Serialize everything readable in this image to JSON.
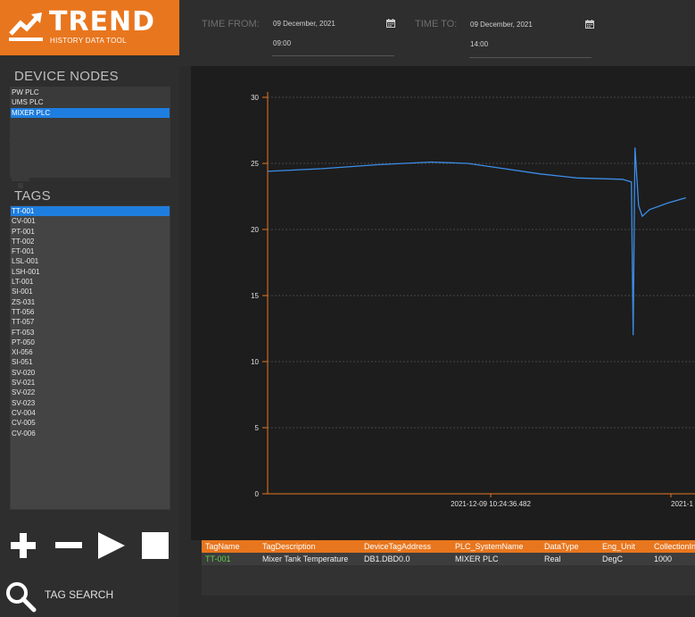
{
  "logo": {
    "title": "TREND",
    "subtitle": "HISTORY DATA TOOL"
  },
  "device_nodes": {
    "label": "DEVICE NODES",
    "items": [
      "PW PLC",
      "UMS PLC",
      "MIXER PLC"
    ],
    "selected": "MIXER PLC"
  },
  "tags": {
    "label": "TAGS",
    "items": [
      "TT-001",
      "CV-001",
      "PT-001",
      "TT-002",
      "FT-001",
      "LSL-001",
      "LSH-001",
      "LT-001",
      "SI-001",
      "ZS-031",
      "TT-056",
      "TT-057",
      "FT-053",
      "PT-050",
      "XI-056",
      "SI-051",
      "SV-020",
      "SV-021",
      "SV-022",
      "SV-023",
      "CV-004",
      "CV-005",
      "CV-006"
    ],
    "selected": "TT-001"
  },
  "search": {
    "label": "TAG SEARCH"
  },
  "time": {
    "from_label": "TIME FROM:",
    "from_date": "09 December, 2021",
    "from_time": "09:00",
    "to_label": "TIME TO:",
    "to_date": "09 December, 2021",
    "to_time": "14:00"
  },
  "chart_data": {
    "type": "line",
    "ylim": [
      0,
      30
    ],
    "y_ticks": [
      0,
      5,
      10,
      15,
      20,
      25,
      30
    ],
    "x_tick_labels": [
      "2021-12-09 10:24:36.482",
      "2021-1"
    ],
    "grid": true,
    "series": [
      {
        "color": "#3c8ee8",
        "x": [
          "2021-12-09 09:00",
          "2021-12-09 09:30",
          "2021-12-09 10:00",
          "2021-12-09 10:30",
          "2021-12-09 10:50",
          "2021-12-09 11:10",
          "2021-12-09 11:30",
          "2021-12-09 11:50",
          "2021-12-09 12:15",
          "2021-12-09 12:20",
          "2021-12-09 12:21",
          "2021-12-09 12:22",
          "2021-12-09 12:24",
          "2021-12-09 12:26",
          "2021-12-09 12:30",
          "2021-12-09 12:40",
          "2021-12-09 12:50"
        ],
        "y": [
          24.4,
          24.6,
          24.9,
          25.1,
          25.0,
          24.6,
          24.2,
          23.9,
          23.8,
          23.6,
          12.0,
          26.2,
          21.8,
          21.0,
          21.5,
          22.0,
          22.4
        ]
      }
    ]
  },
  "grid": {
    "headers": [
      "TagName",
      "TagDescription",
      "DeviceTagAddress",
      "PLC_SystemName",
      "DataType",
      "Eng_Unit",
      "CollectionIn"
    ],
    "rows": [
      [
        "TT-001",
        "Mixer Tank Temperature",
        "DB1.DBD0.0",
        "MIXER PLC",
        "Real",
        "DegC",
        "1000"
      ]
    ],
    "accent": "#e8761e",
    "name_color": "#5fd34a"
  }
}
